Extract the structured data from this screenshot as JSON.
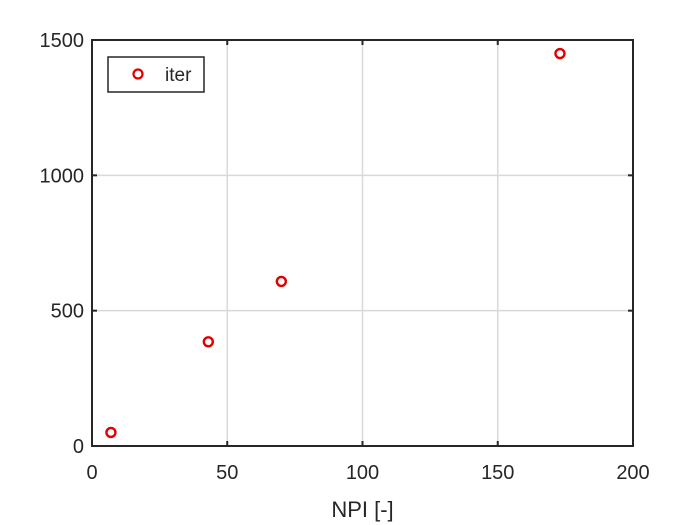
{
  "chart_data": {
    "type": "scatter",
    "title": "",
    "xlabel": "NPI [-]",
    "ylabel": "",
    "xlim": [
      0,
      200
    ],
    "ylim": [
      0,
      1500
    ],
    "xticks": [
      0,
      50,
      100,
      150,
      200
    ],
    "yticks": [
      0,
      500,
      1000,
      1500
    ],
    "grid": true,
    "legend_position": "top-left",
    "series": [
      {
        "name": "iter",
        "marker": "circle-open",
        "color": "#e00000",
        "points": [
          {
            "x": 7,
            "y": 50
          },
          {
            "x": 43,
            "y": 385
          },
          {
            "x": 70,
            "y": 608
          },
          {
            "x": 173,
            "y": 1450
          }
        ]
      }
    ]
  }
}
